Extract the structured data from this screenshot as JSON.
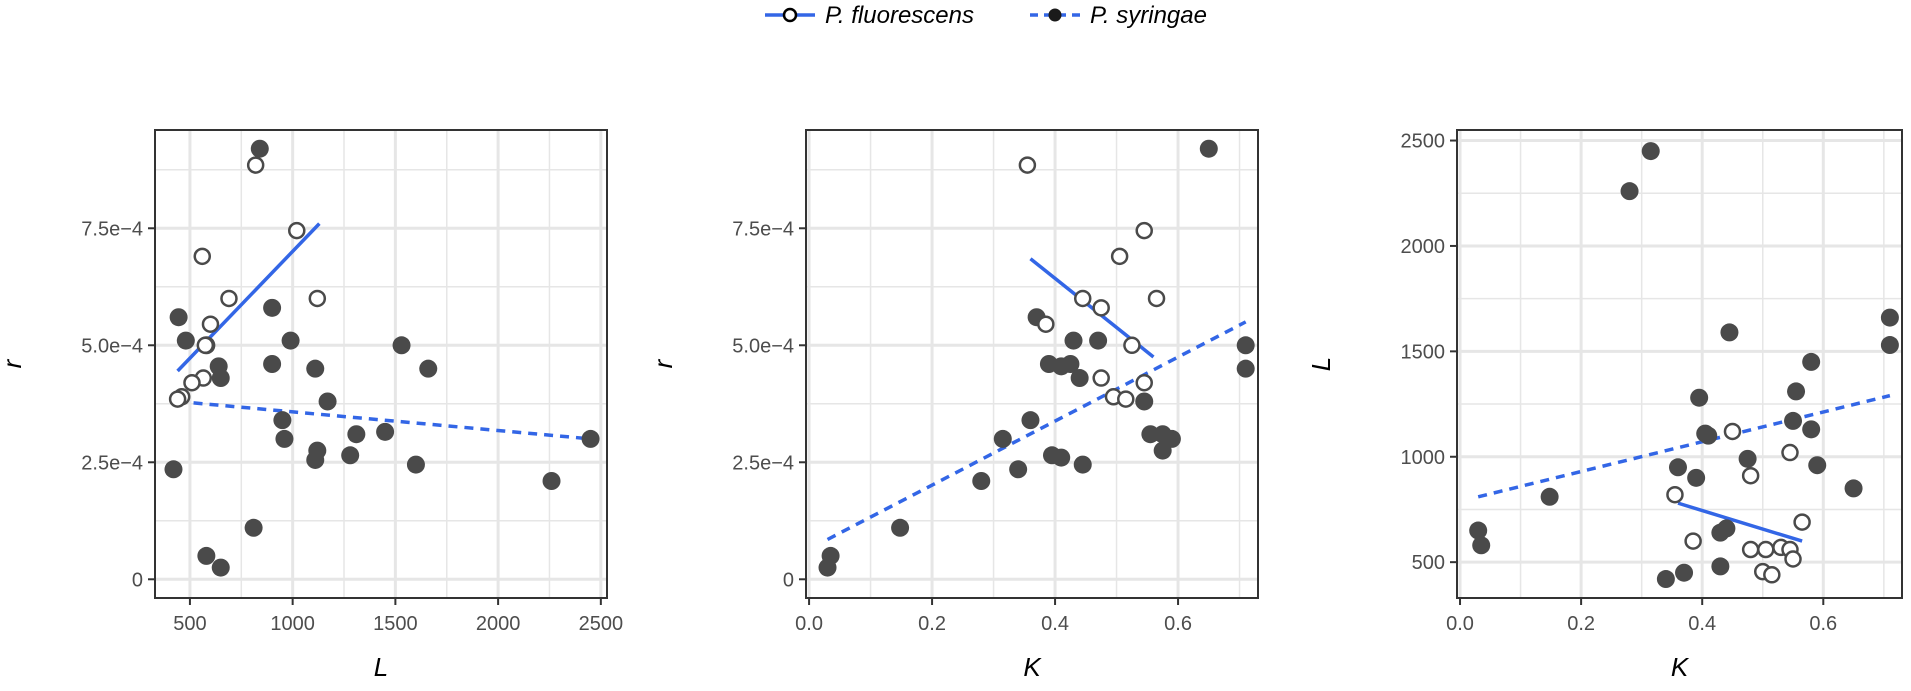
{
  "colors": {
    "line": "#3366e6",
    "filled": "#4a4a4a",
    "open_stroke": "#4a4a4a",
    "grid": "#e6e6e6",
    "frame": "#333333"
  },
  "legend": {
    "placement": "top-center",
    "entries": [
      {
        "label": "P. fluorescens",
        "linestyle": "solid",
        "marker": "open-circle"
      },
      {
        "label": "P. syringae",
        "linestyle": "dashed",
        "marker": "filled-circle"
      }
    ]
  },
  "chart_data": [
    {
      "type": "scatter",
      "xlabel": "L",
      "ylabel": "r",
      "xlim": [
        330,
        2530
      ],
      "ylim": [
        -4e-05,
        0.00096
      ],
      "grid": true,
      "x_ticks": [
        500,
        1000,
        1500,
        2000,
        2500
      ],
      "x_tick_labels": [
        "500",
        "1000",
        "1500",
        "2000",
        "2500"
      ],
      "y_ticks": [
        0,
        0.00025,
        0.0005,
        0.00075
      ],
      "y_tick_labels": [
        "0",
        "2.5e−4",
        "5.0e−4",
        "7.5e−4"
      ],
      "series": [
        {
          "name": "P. fluorescens",
          "marker": "open",
          "points": [
            [
              820,
              0.000885
            ],
            [
              1020,
              0.000745
            ],
            [
              560,
              0.00069
            ],
            [
              690,
              0.0006
            ],
            [
              1120,
              0.0006
            ],
            [
              600,
              0.000545
            ],
            [
              575,
              0.0005
            ],
            [
              565,
              0.00043
            ],
            [
              510,
              0.00042
            ],
            [
              460,
              0.00039
            ],
            [
              440,
              0.000385
            ]
          ],
          "fit": {
            "style": "solid",
            "x": [
              440,
              1130
            ],
            "y": [
              0.000445,
              0.00076
            ]
          }
        },
        {
          "name": "P. syringae",
          "marker": "filled",
          "points": [
            [
              840,
              0.00092
            ],
            [
              900,
              0.00058
            ],
            [
              445,
              0.00056
            ],
            [
              480,
              0.00051
            ],
            [
              580,
              0.0005
            ],
            [
              990,
              0.00051
            ],
            [
              1530,
              0.0005
            ],
            [
              900,
              0.00046
            ],
            [
              640,
              0.000455
            ],
            [
              1110,
              0.00045
            ],
            [
              1660,
              0.00045
            ],
            [
              650,
              0.00043
            ],
            [
              1170,
              0.00038
            ],
            [
              950,
              0.00034
            ],
            [
              1310,
              0.00031
            ],
            [
              1450,
              0.000315
            ],
            [
              960,
              0.0003
            ],
            [
              1120,
              0.000275
            ],
            [
              1280,
              0.000265
            ],
            [
              1110,
              0.000255
            ],
            [
              1600,
              0.000245
            ],
            [
              2450,
              0.0003
            ],
            [
              420,
              0.000235
            ],
            [
              2260,
              0.00021
            ],
            [
              810,
              0.00011
            ],
            [
              580,
              5e-05
            ],
            [
              650,
              2.5e-05
            ]
          ],
          "fit": {
            "style": "dashed",
            "x": [
              440,
              2450
            ],
            "y": [
              0.00038,
              0.0003
            ]
          }
        }
      ]
    },
    {
      "type": "scatter",
      "xlabel": "K",
      "ylabel": "r",
      "xlim": [
        -0.005,
        0.73
      ],
      "ylim": [
        -4e-05,
        0.00096
      ],
      "grid": true,
      "x_ticks": [
        0.0,
        0.2,
        0.4,
        0.6
      ],
      "x_tick_labels": [
        "0.0",
        "0.2",
        "0.4",
        "0.6"
      ],
      "y_ticks": [
        0,
        0.00025,
        0.0005,
        0.00075
      ],
      "y_tick_labels": [
        "0",
        "2.5e−4",
        "5.0e−4",
        "7.5e−4"
      ],
      "series": [
        {
          "name": "P. fluorescens",
          "marker": "open",
          "points": [
            [
              0.355,
              0.000885
            ],
            [
              0.545,
              0.000745
            ],
            [
              0.505,
              0.00069
            ],
            [
              0.445,
              0.0006
            ],
            [
              0.565,
              0.0006
            ],
            [
              0.385,
              0.000545
            ],
            [
              0.475,
              0.00058
            ],
            [
              0.525,
              0.0005
            ],
            [
              0.545,
              0.00042
            ],
            [
              0.475,
              0.00043
            ],
            [
              0.495,
              0.00039
            ],
            [
              0.515,
              0.000385
            ]
          ],
          "fit": {
            "style": "solid",
            "x": [
              0.36,
              0.56
            ],
            "y": [
              0.000685,
              0.000475
            ]
          }
        },
        {
          "name": "P. syringae",
          "marker": "filled",
          "points": [
            [
              0.65,
              0.00092
            ],
            [
              0.37,
              0.00056
            ],
            [
              0.43,
              0.00051
            ],
            [
              0.47,
              0.00051
            ],
            [
              0.71,
              0.0005
            ],
            [
              0.39,
              0.00046
            ],
            [
              0.41,
              0.000455
            ],
            [
              0.425,
              0.00046
            ],
            [
              0.71,
              0.00045
            ],
            [
              0.44,
              0.00043
            ],
            [
              0.545,
              0.00038
            ],
            [
              0.36,
              0.00034
            ],
            [
              0.315,
              0.0003
            ],
            [
              0.555,
              0.00031
            ],
            [
              0.575,
              0.00031
            ],
            [
              0.59,
              0.0003
            ],
            [
              0.575,
              0.000275
            ],
            [
              0.395,
              0.000265
            ],
            [
              0.41,
              0.00026
            ],
            [
              0.445,
              0.000245
            ],
            [
              0.34,
              0.000235
            ],
            [
              0.28,
              0.00021
            ],
            [
              0.148,
              0.00011
            ],
            [
              0.035,
              5e-05
            ],
            [
              0.03,
              2.5e-05
            ]
          ],
          "fit": {
            "style": "dashed",
            "x": [
              0.03,
              0.71
            ],
            "y": [
              8.5e-05,
              0.00055
            ]
          }
        }
      ]
    },
    {
      "type": "scatter",
      "xlabel": "K",
      "ylabel": "L",
      "xlim": [
        -0.005,
        0.73
      ],
      "ylim": [
        330,
        2550
      ],
      "grid": true,
      "x_ticks": [
        0.0,
        0.2,
        0.4,
        0.6
      ],
      "x_tick_labels": [
        "0.0",
        "0.2",
        "0.4",
        "0.6"
      ],
      "y_ticks": [
        500,
        1000,
        1500,
        2000,
        2500
      ],
      "y_tick_labels": [
        "500",
        "1000",
        "1500",
        "2000",
        "2500"
      ],
      "series": [
        {
          "name": "P. fluorescens",
          "marker": "open",
          "points": [
            [
              0.355,
              820
            ],
            [
              0.45,
              1120
            ],
            [
              0.545,
              1020
            ],
            [
              0.565,
              690
            ],
            [
              0.385,
              600
            ],
            [
              0.48,
              910
            ],
            [
              0.48,
              560
            ],
            [
              0.505,
              560
            ],
            [
              0.53,
              570
            ],
            [
              0.545,
              560
            ],
            [
              0.5,
              455
            ],
            [
              0.515,
              440
            ],
            [
              0.55,
              515
            ]
          ],
          "fit": {
            "style": "solid",
            "x": [
              0.36,
              0.565
            ],
            "y": [
              780,
              600
            ]
          }
        },
        {
          "name": "P. syringae",
          "marker": "filled",
          "points": [
            [
              0.315,
              2450
            ],
            [
              0.28,
              2260
            ],
            [
              0.71,
              1660
            ],
            [
              0.445,
              1590
            ],
            [
              0.71,
              1530
            ],
            [
              0.58,
              1450
            ],
            [
              0.555,
              1310
            ],
            [
              0.395,
              1280
            ],
            [
              0.55,
              1170
            ],
            [
              0.58,
              1130
            ],
            [
              0.405,
              1110
            ],
            [
              0.41,
              1100
            ],
            [
              0.475,
              990
            ],
            [
              0.36,
              950
            ],
            [
              0.59,
              960
            ],
            [
              0.39,
              900
            ],
            [
              0.65,
              850
            ],
            [
              0.148,
              810
            ],
            [
              0.44,
              660
            ],
            [
              0.43,
              640
            ],
            [
              0.03,
              650
            ],
            [
              0.035,
              580
            ],
            [
              0.43,
              480
            ],
            [
              0.37,
              450
            ],
            [
              0.34,
              420
            ]
          ],
          "fit": {
            "style": "dashed",
            "x": [
              0.03,
              0.71
            ],
            "y": [
              810,
              1290
            ]
          }
        }
      ]
    }
  ]
}
